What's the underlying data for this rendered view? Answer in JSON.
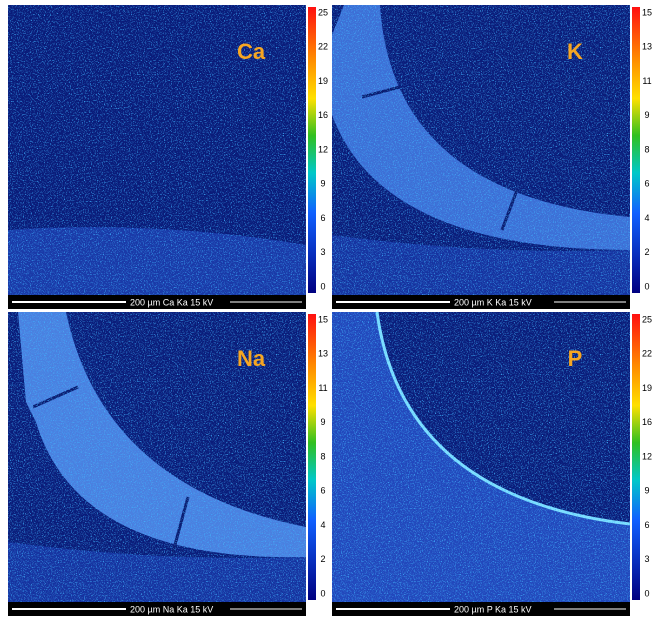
{
  "panels": [
    {
      "element": "Ca",
      "scale_label": "200 µm  Ca Ka  15 kV",
      "colorbar_ticks": [
        25,
        22,
        19,
        16,
        12,
        9,
        6,
        3,
        0
      ]
    },
    {
      "element": "K",
      "scale_label": "200 µm  K Ka  15 kV",
      "colorbar_ticks": [
        15,
        13,
        11,
        9,
        8,
        6,
        4,
        2,
        0
      ]
    },
    {
      "element": "Na",
      "scale_label": "200 µm  Na Ka  15 kV",
      "colorbar_ticks": [
        15,
        13,
        11,
        9,
        8,
        6,
        4,
        2,
        0
      ]
    },
    {
      "element": "P",
      "scale_label": "200 µm  P Ka  15 kV",
      "colorbar_ticks": [
        25,
        22,
        19,
        16,
        12,
        9,
        6,
        3,
        0
      ]
    }
  ]
}
